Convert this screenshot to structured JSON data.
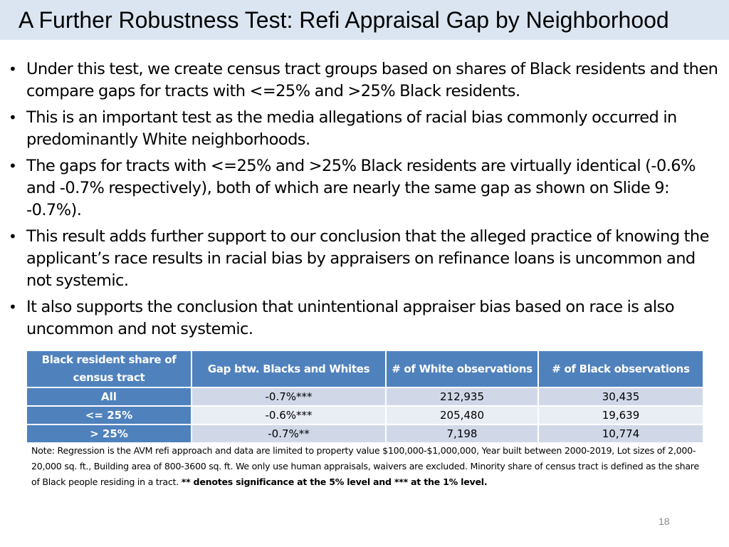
{
  "slide": {
    "title": "A Further Robustness Test: Refi Appraisal Gap by Neighborhood",
    "page_number": "18",
    "bullets": [
      "Under this test, we create census tract groups based on shares of Black residents and then compare gaps for tracts with <=25% and >25% Black residents.",
      "This is an important test as the media allegations of racial bias commonly occurred in predominantly White neighborhoods.",
      "The gaps for tracts with <=25% and >25% Black residents are virtually identical (-0.6% and -0.7% respectively), both of which are nearly the same gap as shown on Slide 9: -0.7%).",
      "This result adds further support to our conclusion that the alleged practice of knowing the applicant’s race results in racial bias by appraisers on refinance loans is uncommon and not systemic.",
      "It also supports the conclusion that unintentional appraiser bias based on race is also uncommon and not systemic."
    ],
    "bullet_glyph": "•"
  },
  "table": {
    "headers": [
      "Black resident share of census tract",
      "Gap btw. Blacks and Whites",
      "# of White observations",
      "# of Black observations"
    ],
    "rows": [
      [
        "All",
        "-0.7%***",
        "212,935",
        "30,435"
      ],
      [
        "<= 25%",
        "-0.6%***",
        "205,480",
        "19,639"
      ],
      [
        "> 25%",
        "-0.7%**",
        "7,198",
        "10,774"
      ]
    ]
  },
  "note": {
    "text": "Note: Regression is the AVM refi approach and data are limited to property value $100,000-$1,000,000, Year built between 2000-2019, Lot sizes of 2,000-20,000 sq. ft., Building area of 800-3600 sq. ft. We only use human appraisals, waivers are excluded. Minority share of census tract is defined as the share of Black people residing in a tract. ",
    "bold": "** denotes significance at the 5% level and *** at the 1% level."
  },
  "colors": {
    "title_band": "#dbe5f1",
    "header_blue": "#4f81bd",
    "row_band_dark": "#d0d8e8",
    "row_band_light": "#e9edf4"
  }
}
